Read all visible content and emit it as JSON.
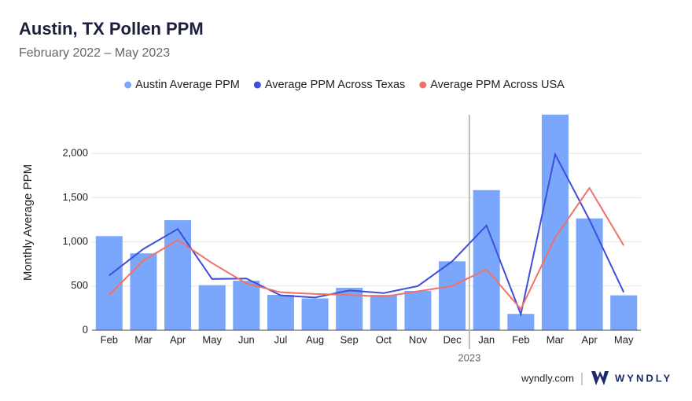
{
  "chart_data": {
    "type": "bar",
    "title": "Austin, TX Pollen PPM",
    "subtitle": "February 2022 – May 2023",
    "y_axis_title": "Monthly Average PPM",
    "categories": [
      "Feb",
      "Mar",
      "Apr",
      "May",
      "Jun",
      "Jul",
      "Aug",
      "Sep",
      "Oct",
      "Nov",
      "Dec",
      "Jan",
      "Feb",
      "Mar",
      "Apr",
      "May"
    ],
    "year_label": "2023",
    "series": [
      {
        "name": "Austin Average PPM",
        "type": "bar",
        "color": "#7aa7fb",
        "values": [
          1065,
          870,
          1245,
          510,
          560,
          400,
          360,
          480,
          400,
          445,
          780,
          1585,
          185,
          2440,
          1265,
          395
        ]
      },
      {
        "name": "Average PPM Across Texas",
        "type": "line",
        "color": "#3d4fd8",
        "values": [
          620,
          920,
          1145,
          580,
          585,
          395,
          370,
          450,
          420,
          500,
          780,
          1185,
          180,
          1990,
          1250,
          430
        ]
      },
      {
        "name": "Average PPM Across USA",
        "type": "line",
        "color": "#ef7268",
        "values": [
          400,
          790,
          1020,
          760,
          530,
          430,
          410,
          400,
          380,
          440,
          500,
          690,
          240,
          1050,
          1610,
          960
        ]
      }
    ],
    "ylim": [
      0,
      2500
    ],
    "yticks": [
      0,
      500,
      {
        "value": 1000,
        "label": "1,000"
      },
      {
        "value": 1500,
        "label": "1,500"
      },
      {
        "value": 2000,
        "label": "2,000"
      }
    ],
    "grid": true
  },
  "footer": {
    "site": "wyndly.com",
    "brand": "WYNDLY"
  }
}
